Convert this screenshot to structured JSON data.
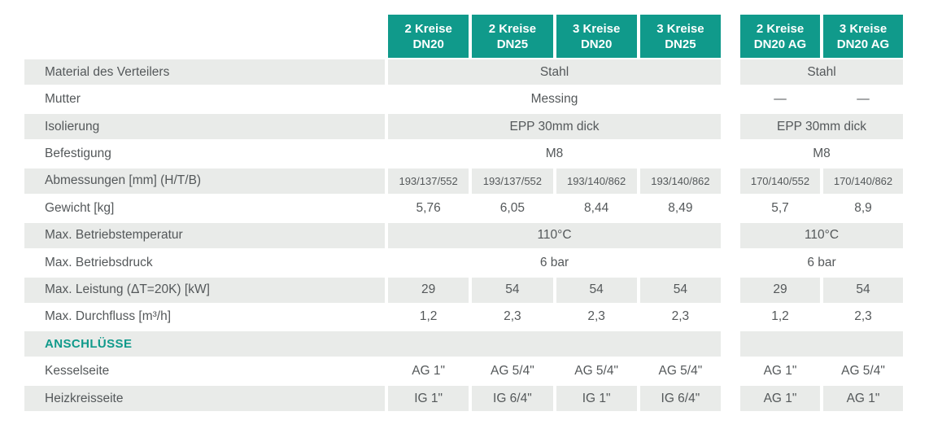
{
  "theme": {
    "accent_teal": "#109a8b",
    "row_gray": "#e9ebe9",
    "text_color": "#54585a"
  },
  "header": {
    "main": [
      {
        "line1": "2 Kreise",
        "line2": "DN20"
      },
      {
        "line1": "2 Kreise",
        "line2": "DN25"
      },
      {
        "line1": "3 Kreise",
        "line2": "DN20"
      },
      {
        "line1": "3 Kreise",
        "line2": "DN25"
      }
    ],
    "right": [
      {
        "line1": "2 Kreise",
        "line2": "DN20 AG"
      },
      {
        "line1": "3 Kreise",
        "line2": "DN20 AG"
      }
    ]
  },
  "rows": {
    "material": {
      "label": "Material des Verteilers",
      "main": "Stahl",
      "right": "Stahl"
    },
    "mutter": {
      "label": "Mutter",
      "main": "Messing",
      "r1": "—",
      "r2": "—"
    },
    "isolierung": {
      "label": "Isolierung",
      "main": "EPP 30mm dick",
      "right": "EPP 30mm dick"
    },
    "befestigung": {
      "label": "Befestigung",
      "main": "M8",
      "right": "M8"
    },
    "abmessungen": {
      "label": "Abmessungen [mm] (H/T/B)",
      "c1": "193/137/552",
      "c2": "193/137/552",
      "c3": "193/140/862",
      "c4": "193/140/862",
      "r1": "170/140/552",
      "r2": "170/140/862"
    },
    "gewicht": {
      "label": "Gewicht [kg]",
      "c1": "5,76",
      "c2": "6,05",
      "c3": "8,44",
      "c4": "8,49",
      "r1": "5,7",
      "r2": "8,9"
    },
    "betriebstemperatur": {
      "label": "Max. Betriebstemperatur",
      "main": "110°C",
      "right": "110°C"
    },
    "betriebsdruck": {
      "label": "Max. Betriebsdruck",
      "main": "6 bar",
      "right": "6 bar"
    },
    "leistung": {
      "label": "Max. Leistung (ΔT=20K) [kW]",
      "c1": "29",
      "c2": "54",
      "c3": "54",
      "c4": "54",
      "r1": "29",
      "r2": "54"
    },
    "durchfluss": {
      "label": "Max. Durchfluss [m³/h]",
      "c1": "1,2",
      "c2": "2,3",
      "c3": "2,3",
      "c4": "2,3",
      "r1": "1,2",
      "r2": "2,3"
    },
    "anschluesse": {
      "label": "ANSCHLÜSSE"
    },
    "kesselseite": {
      "label": "Kesselseite",
      "c1": "AG 1\"",
      "c2": "AG 5/4\"",
      "c3": "AG 5/4\"",
      "c4": "AG 5/4\"",
      "r1": "AG 1\"",
      "r2": "AG 5/4\""
    },
    "heizkreisseite": {
      "label": "Heizkreisseite",
      "c1": "IG 1\"",
      "c2": "IG 6/4\"",
      "c3": "IG 1\"",
      "c4": "IG 6/4\"",
      "r1": "AG 1\"",
      "r2": "AG 1\""
    }
  }
}
